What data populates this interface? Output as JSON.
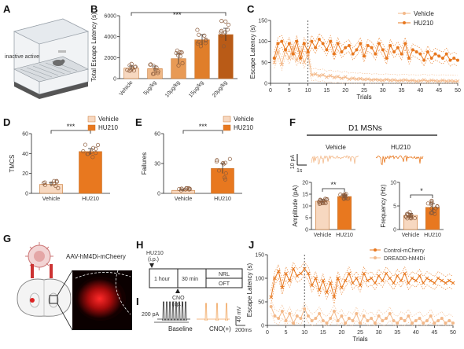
{
  "panels": {
    "A": {
      "letter": "A",
      "device_label": "inactive   active"
    },
    "B": {
      "letter": "B",
      "significance": "***",
      "chart_data": {
        "type": "bar",
        "categories": [
          "Vehicle",
          "5μg/kg",
          "10μg/kg",
          "15μg/kg",
          "20μg/kg"
        ],
        "values": [
          1000,
          950,
          1900,
          3700,
          4200
        ],
        "errors": [
          200,
          250,
          500,
          500,
          600
        ],
        "ylabel": "Total Escape Latency (s)",
        "ylim": [
          0,
          6000
        ],
        "yticks": [
          0,
          2000,
          4000,
          6000
        ],
        "colors": [
          "#f7d8c0",
          "#f0b887",
          "#e89a55",
          "#e07e2a",
          "#b95b17"
        ]
      }
    },
    "C": {
      "letter": "C",
      "chart_data": {
        "type": "line",
        "xlabel": "Trials",
        "ylabel": "Escape Latency (s)",
        "xlim": [
          0,
          50
        ],
        "ylim": [
          0,
          150
        ],
        "xticks": [
          0,
          5,
          10,
          15,
          20,
          25,
          30,
          35,
          40,
          45,
          50
        ],
        "yticks": [
          0,
          50,
          100,
          150
        ],
        "vline": 10,
        "series": [
          {
            "name": "Vehicle",
            "color": "#f3b98a",
            "x": [
              1,
              2,
              3,
              4,
              5,
              6,
              7,
              8,
              9,
              10,
              11,
              12,
              13,
              14,
              15,
              16,
              17,
              18,
              19,
              20,
              21,
              22,
              23,
              24,
              25,
              26,
              27,
              28,
              29,
              30,
              31,
              32,
              33,
              34,
              35,
              36,
              37,
              38,
              39,
              40,
              41,
              42,
              43,
              44,
              45,
              46,
              47,
              48,
              49,
              50
            ],
            "y": [
              50,
              75,
              45,
              80,
              60,
              85,
              55,
              75,
              50,
              70,
              20,
              22,
              18,
              20,
              15,
              18,
              14,
              16,
              12,
              15,
              10,
              12,
              10,
              11,
              9,
              10,
              8,
              9,
              8,
              7,
              9,
              7,
              8,
              6,
              7,
              8,
              6,
              7,
              5,
              6,
              8,
              5,
              7,
              6,
              5,
              7,
              5,
              6,
              5,
              5
            ]
          },
          {
            "name": "HU210",
            "color": "#e8781f",
            "x": [
              1,
              2,
              3,
              4,
              5,
              6,
              7,
              8,
              9,
              10,
              11,
              12,
              13,
              14,
              15,
              16,
              17,
              18,
              19,
              20,
              21,
              22,
              23,
              24,
              25,
              26,
              27,
              28,
              29,
              30,
              31,
              32,
              33,
              34,
              35,
              36,
              37,
              38,
              39,
              40,
              41,
              42,
              43,
              44,
              45,
              46,
              47,
              48,
              49,
              50
            ],
            "y": [
              60,
              95,
              100,
              80,
              95,
              70,
              100,
              60,
              95,
              75,
              100,
              85,
              105,
              95,
              80,
              100,
              70,
              95,
              75,
              85,
              90,
              70,
              80,
              95,
              65,
              90,
              85,
              70,
              95,
              80,
              60,
              90,
              75,
              85,
              70,
              95,
              60,
              80,
              75,
              70,
              55,
              75,
              60,
              70,
              65,
              60,
              70,
              55,
              60,
              55
            ]
          }
        ]
      }
    },
    "D": {
      "letter": "D",
      "significance": "***",
      "chart_data": {
        "type": "bar",
        "categories": [
          "Vehicle",
          "HU210"
        ],
        "values": [
          9,
          42
        ],
        "errors": [
          2,
          3
        ],
        "ylabel": "TMCS",
        "ylim": [
          0,
          60
        ],
        "yticks": [
          0,
          20,
          40,
          60
        ],
        "colors": [
          "#f7d8c0",
          "#e8781f"
        ]
      }
    },
    "E": {
      "letter": "E",
      "significance": "***",
      "chart_data": {
        "type": "bar",
        "categories": [
          "Vehicle",
          "HU210"
        ],
        "values": [
          3,
          25
        ],
        "errors": [
          1,
          5
        ],
        "ylabel": "Failures",
        "ylim": [
          0,
          60
        ],
        "yticks": [
          0,
          30,
          60
        ],
        "colors": [
          "#f7d8c0",
          "#e8781f"
        ]
      }
    },
    "F": {
      "letter": "F",
      "header": "D1 MSNs",
      "groups": [
        "Vehicle",
        "HU210"
      ],
      "scale_y": "10 pA",
      "scale_x": "1s",
      "amplitude": {
        "significance": "**",
        "chart_data": {
          "type": "bar",
          "categories": [
            "Vehicle",
            "HU210"
          ],
          "values": [
            12,
            14
          ],
          "errors": [
            0.7,
            0.6
          ],
          "ylabel": "Amplitude (pA)",
          "ylim": [
            0,
            20
          ],
          "yticks": [
            0,
            5,
            10,
            15,
            20
          ],
          "colors": [
            "#f7d8c0",
            "#e8781f"
          ]
        }
      },
      "frequency": {
        "significance": "*",
        "chart_data": {
          "type": "bar",
          "categories": [
            "Vehicle",
            "HU210"
          ],
          "values": [
            3.0,
            4.7
          ],
          "errors": [
            0.4,
            0.8
          ],
          "ylabel": "Frequency (Hz)",
          "ylim": [
            0,
            10
          ],
          "yticks": [
            0,
            5,
            10
          ],
          "colors": [
            "#f7d8c0",
            "#e8781f"
          ]
        }
      }
    },
    "G": {
      "letter": "G",
      "virus": "AAV-hM4Di-mCheery"
    },
    "H": {
      "letter": "H",
      "drug1": "HU210",
      "drug1_route": "(i.p.)",
      "box1": "1 hour",
      "box2": "30 min",
      "box3": "NRL",
      "box4": "OFT",
      "drug2": "CNO",
      "drug2_route": "(i.p.)"
    },
    "I": {
      "letter": "I",
      "amp_label": "200 pA",
      "baseline": "Baseline",
      "cno": "CNO(+)",
      "scale_y": "40 mV",
      "scale_x": "200ms"
    },
    "J": {
      "letter": "J",
      "chart_data": {
        "type": "line",
        "xlabel": "Trials",
        "ylabel": "Escape Latency (s)",
        "xlim": [
          0,
          50
        ],
        "ylim": [
          0,
          150
        ],
        "xticks": [
          0,
          5,
          10,
          15,
          20,
          25,
          30,
          35,
          40,
          45,
          50
        ],
        "yticks": [
          0,
          50,
          100,
          150
        ],
        "vline": 10,
        "series": [
          {
            "name": "Control-mCherry",
            "color": "#e8781f",
            "x": [
              1,
              2,
              3,
              4,
              5,
              6,
              7,
              8,
              9,
              10,
              11,
              12,
              13,
              14,
              15,
              16,
              17,
              18,
              19,
              20,
              21,
              22,
              23,
              24,
              25,
              26,
              27,
              28,
              29,
              30,
              31,
              32,
              33,
              34,
              35,
              36,
              37,
              38,
              39,
              40,
              41,
              42,
              43,
              44,
              45,
              46,
              47,
              48,
              49,
              50
            ],
            "y": [
              60,
              100,
              115,
              80,
              110,
              95,
              120,
              105,
              110,
              120,
              110,
              85,
              100,
              75,
              95,
              70,
              90,
              60,
              100,
              80,
              95,
              110,
              90,
              100,
              85,
              110,
              95,
              100,
              90,
              105,
              95,
              110,
              100,
              90,
              105,
              95,
              110,
              90,
              100,
              95,
              105,
              90,
              100,
              95,
              90,
              100,
              95,
              90,
              95,
              90
            ]
          },
          {
            "name": "DREADD-hM4Di",
            "color": "#f3b98a",
            "x": [
              1,
              2,
              3,
              4,
              5,
              6,
              7,
              8,
              9,
              10,
              11,
              12,
              13,
              14,
              15,
              16,
              17,
              18,
              19,
              20,
              21,
              22,
              23,
              24,
              25,
              26,
              27,
              28,
              29,
              30,
              31,
              32,
              33,
              34,
              35,
              36,
              37,
              38,
              39,
              40,
              41,
              42,
              43,
              44,
              45,
              46,
              47,
              48,
              49,
              50
            ],
            "y": [
              40,
              20,
              15,
              30,
              10,
              25,
              5,
              20,
              15,
              35,
              20,
              10,
              15,
              25,
              10,
              5,
              15,
              30,
              10,
              20,
              5,
              15,
              10,
              25,
              5,
              20,
              10,
              15,
              5,
              20,
              10,
              15,
              25,
              10,
              5,
              15,
              10,
              20,
              5,
              10,
              15,
              5,
              10,
              20,
              5,
              10,
              15,
              5,
              10,
              5
            ]
          }
        ]
      }
    }
  }
}
